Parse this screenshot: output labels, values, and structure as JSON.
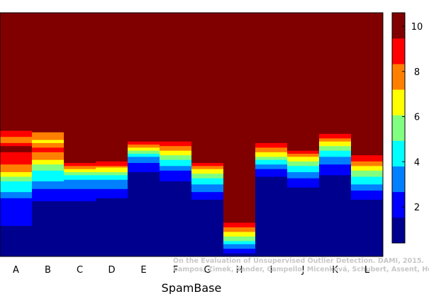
{
  "chart_data": {
    "type": "heatmap",
    "title": "",
    "xlabel": "SpamBase",
    "ylabel": "",
    "categories": [
      "A",
      "B",
      "C",
      "D",
      "E",
      "F",
      "G",
      "H",
      "I",
      "J",
      "K",
      "L"
    ],
    "columns": [
      "888888888888888888888888888888888888888888888888888888888888888888888888888887777666677888877777777666665554443333333222211111111111111111100000000000000000000",
      "888888888888888888888888888888888888888888888888888888888888888888888888888888666665566677766666555444433333332222211111111000000000000000000000000000000000000",
      "888888888888888888888888888888888888888888888888888888888888888888888888888888888888888888888888887766554433322222211111111000000000000000000000000000000000000",
      "888888888888888888888888888888888888888888888888888888888888888888888888888888888888888888888888877765554433322222211111100000000000000000000000000000000000000",
      "888888888888888888888888888888888888888888888888888888888888888888888888888888888888776655443322221111110000000000000000000000000000000000000000000000000000000",
      "888888888888888888888888888888888888888888888888888888888888888888888888888888888888777666555444333322211111110000000000000000000000000000000000000000000000000",
      "888888888888888888888888888888888888888888888888888888888888888888888888888888888888888888888888887766555444333322222111110000000000000000000000000000000000000",
      "888888888888888888888888888888888888888888888888888888888888888888888888888888888888888888888888888888888888888888888888888888888888888887776665554443322211100",
      "888888888888888888888888888888888888888888888888888888888888888888888888888888888888877766655544333222111110000000000000000000000000000000000000000000000000000",
      "888888888888888888888888888888888888888888888888888888888888888888888888888888888888888888776655544433332222111111000000000000000000000000000000000000000000000",
      "888888888888888888888888888888888888888888888888888888888888888888888888888888877766555444333322222111111100000000000000000000000000000000000000000000000000000",
      "888888888888888888888888888888888888888888888888888888888888888888888888888888888888888888888777766655544443333322221111110000000000000000000000000000000000000"
    ],
    "value_encoding": "digits 0-8 per cell map to values 0.4, 1.6, 2.8, 4.0, 5.2, 6.4, 7.6, 8.8, 10.4",
    "colorbar": {
      "min": 0.4,
      "max": 10.6,
      "ticks": [
        2,
        4,
        6,
        8,
        10
      ],
      "colormap": "jet",
      "colors": [
        "#00008f",
        "#0000ff",
        "#0080ff",
        "#00ffff",
        "#80ff80",
        "#ffff00",
        "#ff8000",
        "#ff0000",
        "#800000"
      ]
    },
    "grid": false,
    "legend": "colorbar-right"
  },
  "credit": {
    "line1": "On the Evaluation of Unsupervised Outlier Detection. DAMI, 2015.",
    "line2": "Campos, Zimek, Sander, Campello, Micenková, Schubert, Assent, Houle"
  }
}
